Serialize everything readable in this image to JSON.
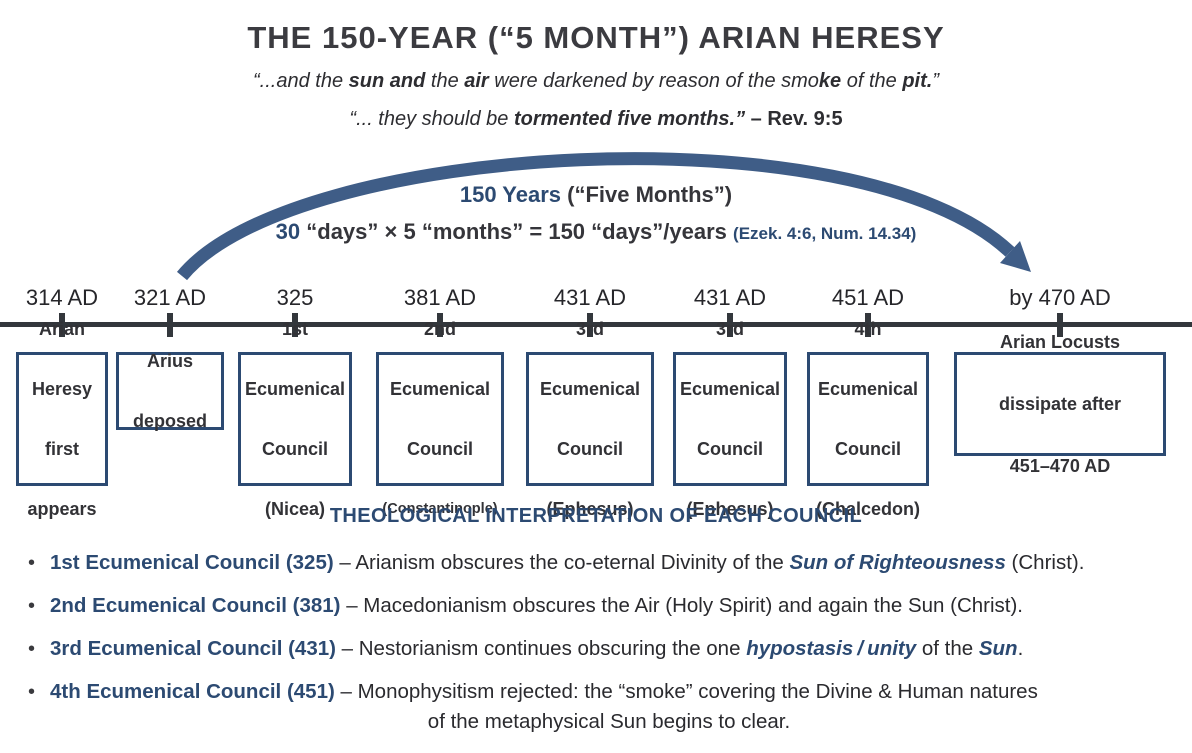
{
  "title": "THE 150-YEAR (“5 MONTH”) ARIAN HERESY",
  "quotes": {
    "line1": [
      {
        "t": "“...and the "
      },
      {
        "t": "sun",
        "c": "b"
      },
      {
        "t": " "
      },
      {
        "t": "and",
        "c": "b"
      },
      {
        "t": " the "
      },
      {
        "t": "air",
        "c": "b"
      },
      {
        "t": " were darkened by reason of the smo"
      },
      {
        "t": "ke",
        "c": "b"
      },
      {
        "t": " of the "
      },
      {
        "t": "pit.",
        "c": "b"
      },
      {
        "t": "”"
      }
    ],
    "line2": [
      {
        "t": "“... they should be "
      },
      {
        "t": "tormented five months.”",
        "c": "b"
      },
      {
        "t": " – Rev. 9:5",
        "c": "ref"
      }
    ]
  },
  "arc": {
    "line1": [
      {
        "t": "150 Years",
        "c": "navy"
      },
      {
        "t": "  (“Five Months”)"
      }
    ],
    "line2": [
      {
        "t": "30",
        "c": "navy"
      },
      {
        "t": " “days” × 5 “months” = 150 “days”/years "
      },
      {
        "t": "(Ezek. 4:6, Num. 14.34)",
        "c": "navy sm"
      }
    ]
  },
  "timeline": {
    "items": [
      {
        "date": "314 AD",
        "box": [
          {
            "t": "Arian"
          },
          {
            "br": true
          },
          {
            "t": "Heresy"
          },
          {
            "br": true
          },
          {
            "t": "first"
          },
          {
            "br": true
          },
          {
            "t": "appears"
          }
        ]
      },
      {
        "date": "321 AD",
        "box": [
          {
            "t": "Arius"
          },
          {
            "br": true
          },
          {
            "t": "deposed"
          }
        ]
      },
      {
        "date": "325",
        "box": [
          {
            "t": "1st"
          },
          {
            "br": true
          },
          {
            "t": "Ecumenical"
          },
          {
            "br": true
          },
          {
            "t": "Council"
          },
          {
            "br": true
          },
          {
            "t": "(Nicea)"
          }
        ]
      },
      {
        "date": "381 AD",
        "box": [
          {
            "t": "2nd"
          },
          {
            "br": true
          },
          {
            "t": "Ecumenical"
          },
          {
            "br": true
          },
          {
            "t": "Council"
          },
          {
            "br": true
          },
          {
            "t": "(Constantinople)",
            "c": "sm"
          }
        ]
      },
      {
        "date": "431 AD",
        "box": [
          {
            "t": "3rd"
          },
          {
            "br": true
          },
          {
            "t": "Ecumenical"
          },
          {
            "br": true
          },
          {
            "t": "Council"
          },
          {
            "br": true
          },
          {
            "t": "(Ephesus)"
          }
        ]
      },
      {
        "date": "431 AD",
        "box": [
          {
            "t": "3rd"
          },
          {
            "br": true
          },
          {
            "t": "Ecumenical"
          },
          {
            "br": true
          },
          {
            "t": "Council"
          },
          {
            "br": true
          },
          {
            "t": "(Ephesus)"
          }
        ]
      },
      {
        "date": "451 AD",
        "box": [
          {
            "t": "4th"
          },
          {
            "br": true
          },
          {
            "t": "Ecumenical"
          },
          {
            "br": true
          },
          {
            "t": "Council"
          },
          {
            "br": true
          },
          {
            "t": "(Chalcedon)"
          }
        ]
      },
      {
        "date": "by 470 AD",
        "box": [
          {
            "t": "Arian Locusts"
          },
          {
            "br": true
          },
          {
            "t": "dissipate after"
          },
          {
            "br": true
          },
          {
            "t": "451–470 AD"
          }
        ]
      }
    ]
  },
  "interpretation": {
    "heading": "THEOLOGICAL INTERPRETATION OF EACH COUNCIL",
    "bullets": [
      [
        {
          "t": "1st Ecumenical Council (325)",
          "c": "navy-b"
        },
        {
          "t": " – Arianism obscures the co-eternal Divinity of the "
        },
        {
          "t": "Sun of Righteousness",
          "c": "navy-bi"
        },
        {
          "t": " (Christ)."
        }
      ],
      [
        {
          "t": "2nd Ecumenical Council (381)",
          "c": "navy-b"
        },
        {
          "t": " – Macedonianism obscures the Air (Holy Spirit) and again the Sun (Christ)."
        }
      ],
      [
        {
          "t": "3rd Ecumenical Council (431)",
          "c": "navy-b"
        },
        {
          "t": " – Nestorianism continues obscuring the one "
        },
        {
          "t": "hypostasis / unity",
          "c": "navy-bi"
        },
        {
          "t": " of the "
        },
        {
          "t": "Sun",
          "c": "navy-bi"
        },
        {
          "t": "."
        }
      ],
      [
        {
          "t": "4th Ecumenical Council (451)",
          "c": "navy-b"
        },
        {
          "t": " – Monophysitism rejected: the “smoke” covering the Divine & Human natures"
        },
        {
          "t": "of the metaphysical Sun begins to clear.",
          "c": "blockcenter"
        }
      ]
    ]
  },
  "colors": {
    "navy": "#2c4a72",
    "arc_blue": "#3f5d87",
    "axis_dark": "#33373c",
    "text_dark": "#2d2d31",
    "box_border": "#2c4a72",
    "background": "#ffffff"
  }
}
